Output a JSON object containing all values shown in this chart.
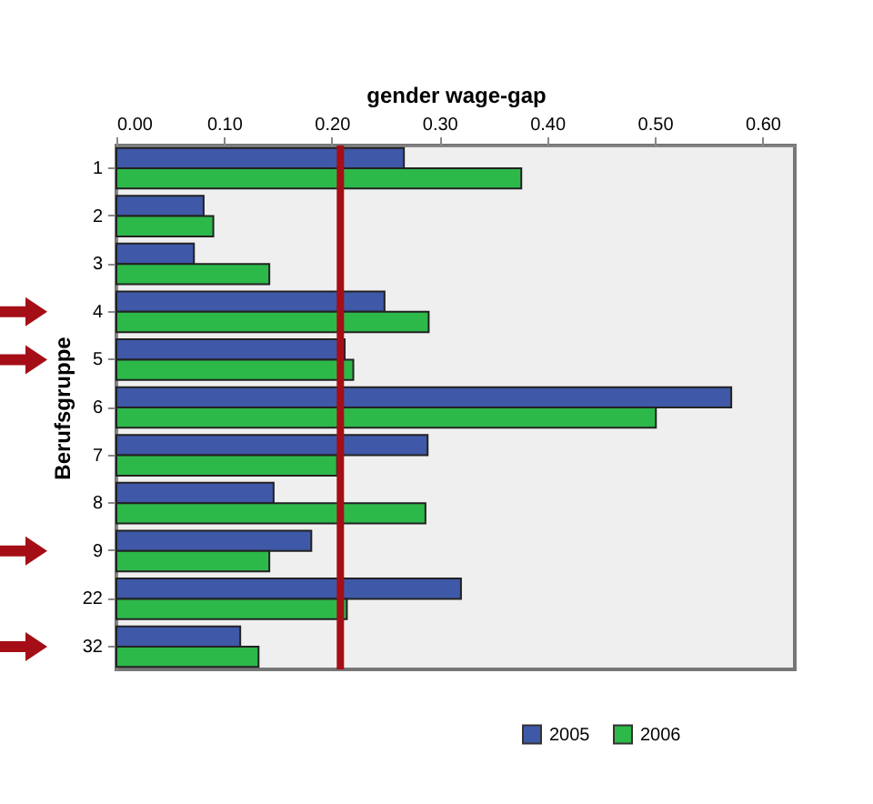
{
  "chart_data": {
    "type": "bar",
    "orientation": "horizontal",
    "xlabel": "gender wage-gap",
    "ylabel": "Berufsgruppe",
    "categories": [
      "1",
      "2",
      "3",
      "4",
      "5",
      "6",
      "7",
      "8",
      "9",
      "22",
      "32"
    ],
    "series": [
      {
        "name": "2005",
        "color": "#3f58a8",
        "values": [
          0.267,
          0.081,
          0.072,
          0.249,
          0.212,
          0.571,
          0.289,
          0.146,
          0.181,
          0.32,
          0.115
        ]
      },
      {
        "name": "2006",
        "color": "#2db84a",
        "values": [
          0.376,
          0.09,
          0.142,
          0.29,
          0.22,
          0.501,
          0.205,
          0.287,
          0.142,
          0.214,
          0.132
        ]
      }
    ],
    "xlim": [
      0,
      0.63
    ],
    "xticks": [
      {
        "value": 0,
        "label": "0.00"
      },
      {
        "value": 0.1,
        "label": "0.10"
      },
      {
        "value": 0.2,
        "label": "0.20"
      },
      {
        "value": 0.3,
        "label": "0.30"
      },
      {
        "value": 0.4,
        "label": "0.40"
      },
      {
        "value": 0.5,
        "label": "0.50"
      },
      {
        "value": 0.6,
        "label": "0.60"
      }
    ],
    "ref_lines": [
      {
        "axis": "x",
        "value": 0.208,
        "color": "#a50e16"
      }
    ],
    "grid": false,
    "legend": "bottom right"
  }
}
